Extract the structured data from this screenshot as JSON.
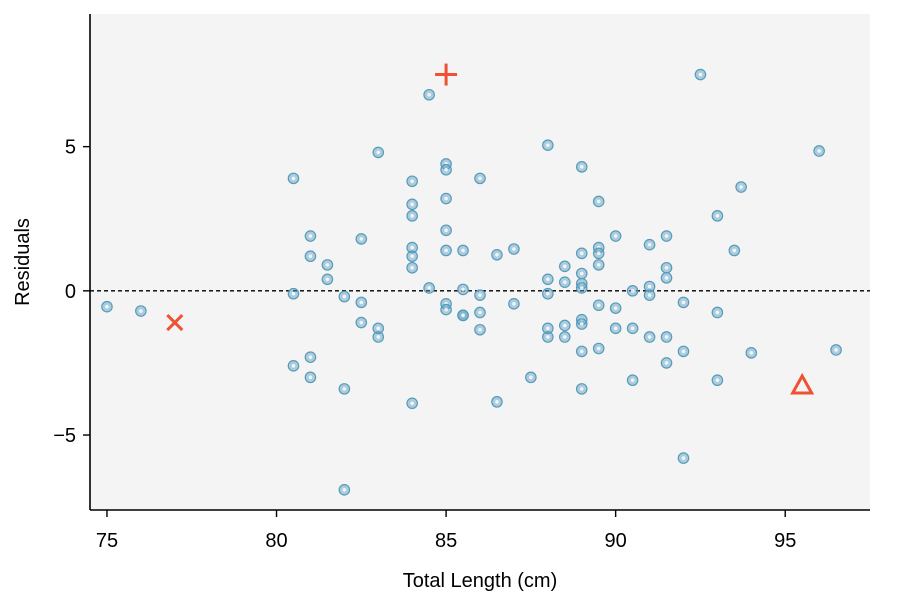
{
  "chart_data": {
    "type": "scatter",
    "xlabel": "Total Length (cm)",
    "ylabel": "Residuals",
    "xlim": [
      74.5,
      97.5
    ],
    "ylim": [
      -7.6,
      9.6
    ],
    "xticks": [
      75,
      80,
      85,
      90,
      95
    ],
    "xtick_labels": [
      "75",
      "80",
      "85",
      "90",
      "95"
    ],
    "yticks": [
      -5,
      0,
      5
    ],
    "ytick_labels": [
      "−5",
      "0",
      "5"
    ],
    "reference_line": {
      "y": 0,
      "style": "dashed"
    },
    "grid": false,
    "background": "#f4f4f4",
    "point_color": "#569bbd",
    "highlight_color": "#f05133",
    "points": [
      [
        75.0,
        -0.55
      ],
      [
        76.0,
        -0.7
      ],
      [
        80.5,
        3.9
      ],
      [
        80.5,
        -0.1
      ],
      [
        80.5,
        -2.6
      ],
      [
        81.0,
        1.9
      ],
      [
        81.0,
        1.2
      ],
      [
        81.0,
        -2.3
      ],
      [
        81.0,
        -3.0
      ],
      [
        81.5,
        0.9
      ],
      [
        81.5,
        0.4
      ],
      [
        82.0,
        -0.2
      ],
      [
        82.0,
        -3.4
      ],
      [
        82.0,
        -6.9
      ],
      [
        82.5,
        1.8
      ],
      [
        82.5,
        -0.4
      ],
      [
        82.5,
        -1.1
      ],
      [
        83.0,
        4.8
      ],
      [
        83.0,
        -1.3
      ],
      [
        83.0,
        -1.6
      ],
      [
        84.0,
        3.8
      ],
      [
        84.0,
        3.0
      ],
      [
        84.0,
        2.6
      ],
      [
        84.0,
        1.5
      ],
      [
        84.0,
        1.2
      ],
      [
        84.0,
        0.8
      ],
      [
        84.0,
        -3.9
      ],
      [
        84.5,
        6.8
      ],
      [
        84.5,
        0.1
      ],
      [
        85.0,
        4.4
      ],
      [
        85.0,
        4.2
      ],
      [
        85.0,
        3.2
      ],
      [
        85.0,
        2.1
      ],
      [
        85.0,
        1.4
      ],
      [
        85.0,
        -0.45
      ],
      [
        85.0,
        -0.65
      ],
      [
        85.5,
        1.4
      ],
      [
        85.5,
        0.05
      ],
      [
        85.5,
        -0.85
      ],
      [
        85.5,
        -0.85
      ],
      [
        86.0,
        3.9
      ],
      [
        86.0,
        -0.15
      ],
      [
        86.0,
        -0.75
      ],
      [
        86.0,
        -1.35
      ],
      [
        86.5,
        1.25
      ],
      [
        86.5,
        -3.85
      ],
      [
        87.0,
        1.45
      ],
      [
        87.0,
        -0.45
      ],
      [
        87.5,
        -3.0
      ],
      [
        88.0,
        5.05
      ],
      [
        88.0,
        0.4
      ],
      [
        88.0,
        -0.1
      ],
      [
        88.0,
        -1.3
      ],
      [
        88.0,
        -1.6
      ],
      [
        88.5,
        0.85
      ],
      [
        88.5,
        0.3
      ],
      [
        88.5,
        -1.2
      ],
      [
        88.5,
        -1.6
      ],
      [
        89.0,
        4.3
      ],
      [
        89.0,
        1.3
      ],
      [
        89.0,
        0.6
      ],
      [
        89.0,
        0.25
      ],
      [
        89.0,
        0.1
      ],
      [
        89.0,
        -1.0
      ],
      [
        89.0,
        -1.15
      ],
      [
        89.0,
        -2.1
      ],
      [
        89.0,
        -3.4
      ],
      [
        89.5,
        3.1
      ],
      [
        89.5,
        1.5
      ],
      [
        89.5,
        1.3
      ],
      [
        89.5,
        0.9
      ],
      [
        89.5,
        -0.5
      ],
      [
        89.5,
        -2.0
      ],
      [
        90.0,
        1.9
      ],
      [
        90.0,
        -0.6
      ],
      [
        90.0,
        -1.3
      ],
      [
        90.5,
        0.0
      ],
      [
        90.5,
        -1.3
      ],
      [
        90.5,
        -3.1
      ],
      [
        91.0,
        1.6
      ],
      [
        91.0,
        0.15
      ],
      [
        91.0,
        -0.15
      ],
      [
        91.0,
        -1.6
      ],
      [
        91.5,
        1.9
      ],
      [
        91.5,
        0.8
      ],
      [
        91.5,
        0.45
      ],
      [
        91.5,
        -1.6
      ],
      [
        91.5,
        -2.5
      ],
      [
        92.0,
        -0.4
      ],
      [
        92.0,
        -2.1
      ],
      [
        92.0,
        -5.8
      ],
      [
        92.5,
        7.5
      ],
      [
        93.0,
        2.6
      ],
      [
        93.0,
        -0.75
      ],
      [
        93.0,
        -3.1
      ],
      [
        93.5,
        1.4
      ],
      [
        93.7,
        3.6
      ],
      [
        94.0,
        -2.15
      ],
      [
        96.0,
        4.85
      ],
      [
        96.5,
        -2.05
      ]
    ],
    "highlighted": [
      {
        "shape": "plus",
        "x": 85.0,
        "y": 7.5
      },
      {
        "shape": "cross",
        "x": 77.0,
        "y": -1.1
      },
      {
        "shape": "triangle",
        "x": 95.5,
        "y": -3.3
      }
    ]
  }
}
